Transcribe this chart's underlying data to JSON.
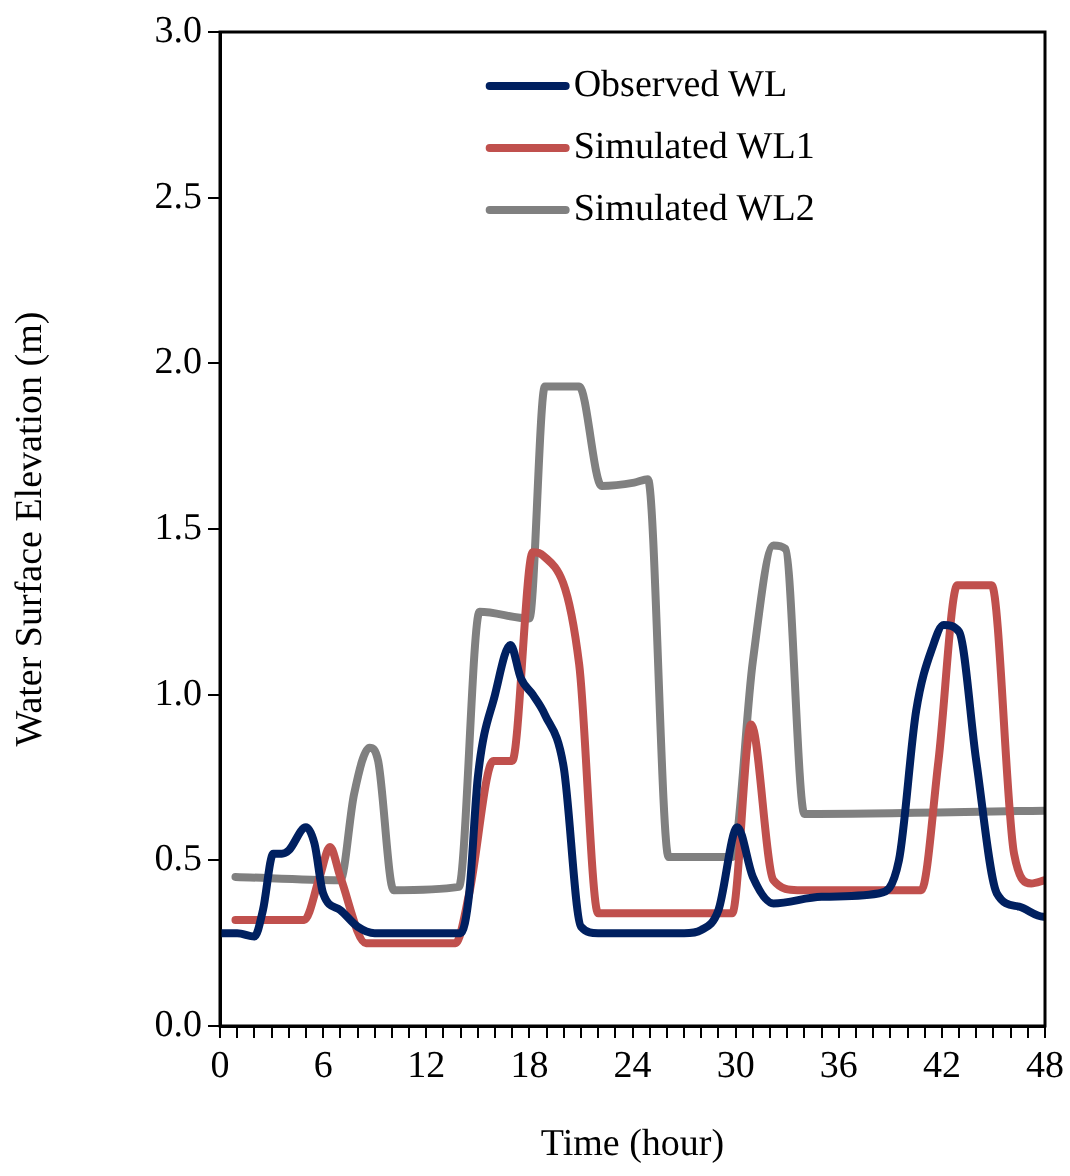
{
  "chart_data": {
    "type": "line",
    "xlabel": "Time (hour)",
    "ylabel": "Water Surface Elevation (m)",
    "legend": "top",
    "marker": "none",
    "line_style": "solid",
    "grid": false,
    "xlim": [
      0,
      48
    ],
    "ylim": [
      0,
      3
    ],
    "xticks": [
      0,
      {
        "value": 1,
        "label": null
      },
      {
        "value": 2,
        "label": null
      },
      {
        "value": 3,
        "label": null
      },
      {
        "value": 4,
        "label": null
      },
      {
        "value": 5,
        "label": null
      },
      6,
      {
        "value": 7,
        "label": null
      },
      {
        "value": 8,
        "label": null
      },
      {
        "value": 9,
        "label": null
      },
      {
        "value": 10,
        "label": null
      },
      {
        "value": 11,
        "label": null
      },
      12,
      {
        "value": 13,
        "label": null
      },
      {
        "value": 14,
        "label": null
      },
      {
        "value": 15,
        "label": null
      },
      {
        "value": 16,
        "label": null
      },
      {
        "value": 17,
        "label": null
      },
      18,
      {
        "value": 19,
        "label": null
      },
      {
        "value": 20,
        "label": null
      },
      {
        "value": 21,
        "label": null
      },
      {
        "value": 22,
        "label": null
      },
      {
        "value": 23,
        "label": null
      },
      24,
      {
        "value": 25,
        "label": null
      },
      {
        "value": 26,
        "label": null
      },
      {
        "value": 27,
        "label": null
      },
      {
        "value": 28,
        "label": null
      },
      {
        "value": 29,
        "label": null
      },
      30,
      {
        "value": 31,
        "label": null
      },
      {
        "value": 32,
        "label": null
      },
      {
        "value": 33,
        "label": null
      },
      {
        "value": 34,
        "label": null
      },
      {
        "value": 35,
        "label": null
      },
      36,
      {
        "value": 37,
        "label": null
      },
      {
        "value": 38,
        "label": null
      },
      {
        "value": 39,
        "label": null
      },
      {
        "value": 40,
        "label": null
      },
      {
        "value": 41,
        "label": null
      },
      42,
      {
        "value": 43,
        "label": null
      },
      {
        "value": 44,
        "label": null
      },
      {
        "value": 45,
        "label": null
      },
      {
        "value": 46,
        "label": null
      },
      {
        "value": 47,
        "label": null
      },
      48
    ],
    "yticks": [
      {
        "value": 0,
        "label": "0.0"
      },
      0.5,
      {
        "value": 1,
        "label": "1.0"
      },
      1.5,
      {
        "value": 2,
        "label": "2.0"
      },
      2.5,
      {
        "value": 3,
        "label": "3.0"
      }
    ],
    "series": [
      {
        "name": "Observed WL",
        "color": "#002060",
        "x": [
          0,
          1,
          2,
          2.5,
          3.1,
          3.6,
          4,
          5,
          5.5,
          6,
          7,
          8,
          9,
          13,
          14,
          14.5,
          15,
          16,
          16.9,
          17.5,
          18.2,
          18.9,
          20,
          21,
          22,
          27,
          28,
          29,
          30.1,
          31,
          32.2,
          35,
          38.3,
          39.5,
          40.5,
          41.5,
          42.1,
          43,
          44,
          45.2,
          46.5,
          47.9,
          48
        ],
        "values": [
          0.28,
          0.28,
          0.27,
          0.35,
          0.52,
          0.52,
          0.53,
          0.6,
          0.55,
          0.4,
          0.35,
          0.3,
          0.28,
          0.28,
          0.28,
          0.4,
          0.75,
          1.0,
          1.15,
          1.05,
          1.0,
          0.94,
          0.78,
          0.3,
          0.28,
          0.28,
          0.29,
          0.35,
          0.6,
          0.45,
          0.37,
          0.39,
          0.4,
          0.5,
          0.95,
          1.15,
          1.21,
          1.19,
          0.8,
          0.4,
          0.36,
          0.33,
          0.33
        ]
      },
      {
        "name": "Simulated WL1",
        "color": "#c0504d",
        "x": [
          0.9,
          4.9,
          5.8,
          6.4,
          7,
          8.5,
          13.7,
          14.5,
          15.9,
          17,
          18.2,
          18.8,
          20.9,
          22,
          29.8,
          30.9,
          32.2,
          33.6,
          40.8,
          41.8,
          42.9,
          44.9,
          46.2,
          47.2,
          48
        ],
        "values": [
          0.32,
          0.32,
          0.45,
          0.54,
          0.45,
          0.25,
          0.25,
          0.4,
          0.8,
          0.8,
          1.43,
          1.42,
          1.09,
          0.34,
          0.34,
          0.91,
          0.44,
          0.41,
          0.41,
          0.8,
          1.33,
          1.33,
          0.52,
          0.43,
          0.44
        ]
      },
      {
        "name": "Simulated WL2",
        "color": "#808080",
        "x": [
          0.9,
          7,
          7.8,
          8.7,
          9.2,
          10.1,
          13.9,
          15.1,
          18,
          18.9,
          20.9,
          22.2,
          24.1,
          24.9,
          26.1,
          29.8,
          31,
          32.2,
          32.9,
          34,
          48
        ],
        "values": [
          0.45,
          0.44,
          0.7,
          0.84,
          0.8,
          0.41,
          0.42,
          1.25,
          1.23,
          1.93,
          1.93,
          1.63,
          1.64,
          1.65,
          0.51,
          0.51,
          1.1,
          1.45,
          1.44,
          0.64,
          0.65
        ]
      }
    ]
  }
}
